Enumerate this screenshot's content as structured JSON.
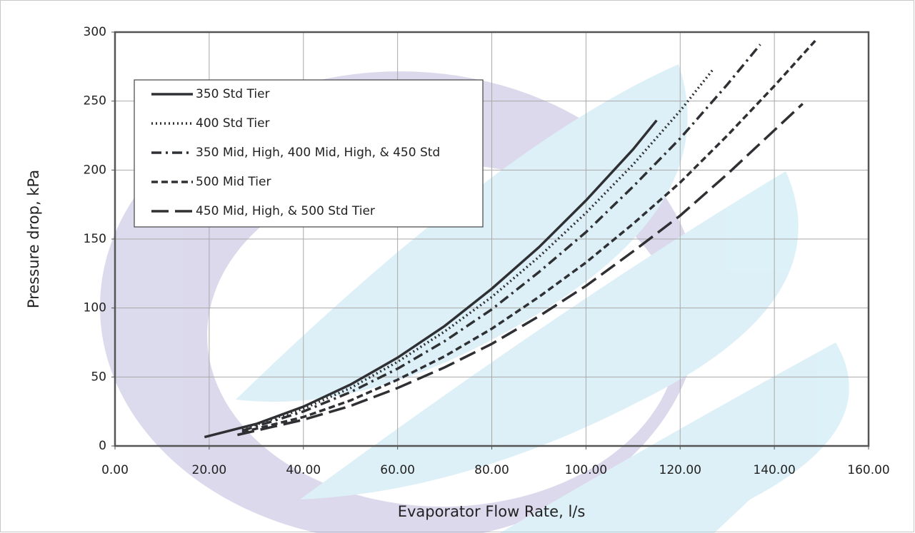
{
  "chart_data": {
    "type": "line",
    "x_label": "Evaporator Flow Rate, l/s",
    "y_label": "Pressure drop, kPa",
    "xlim": [
      0,
      160
    ],
    "xticks": [
      {
        "value": 0,
        "label": "0.00"
      },
      {
        "value": 20,
        "label": "20.00"
      },
      {
        "value": 40,
        "label": "40.00"
      },
      {
        "value": 60,
        "label": "60.00"
      },
      {
        "value": 80,
        "label": "80.00"
      },
      {
        "value": 100,
        "label": "100.00"
      },
      {
        "value": 120,
        "label": "120.00"
      },
      {
        "value": 140,
        "label": "140.00"
      },
      {
        "value": 160,
        "label": "160.00"
      }
    ],
    "ylim": [
      0,
      300
    ],
    "yticks": [
      0,
      50,
      100,
      150,
      200,
      250,
      300
    ],
    "grid": true,
    "legend": "upper left",
    "series": [
      {
        "name": "350 Std Tier",
        "color": "#2f3033",
        "dash": "solid",
        "x": [
          19,
          30,
          40,
          50,
          60,
          70,
          80,
          90,
          100,
          110,
          115
        ],
        "values": [
          6.4,
          16,
          28.5,
          44.5,
          64,
          87,
          114,
          144,
          178,
          215,
          236
        ]
      },
      {
        "name": "400 Std Tier",
        "color": "#2f3033",
        "dash": "dotted",
        "x": [
          27,
          40,
          50,
          60,
          70,
          80,
          90,
          100,
          110,
          120,
          127
        ],
        "values": [
          12,
          27,
          42,
          61,
          83,
          108,
          137,
          169,
          204,
          243,
          273
        ]
      },
      {
        "name": "350 Mid, High, 400 Mid, High, & 450 Std",
        "color": "#2f3033",
        "dash": "dashdot",
        "x": [
          27,
          40,
          50,
          60,
          70,
          80,
          90,
          100,
          110,
          120,
          130,
          137
        ],
        "values": [
          11,
          25,
          39,
          56,
          76,
          99,
          126,
          155,
          188,
          223,
          262,
          291
        ]
      },
      {
        "name": "500 Mid Tier",
        "color": "#2f3033",
        "dash": "dashed",
        "x": [
          27,
          40,
          50,
          60,
          70,
          80,
          90,
          100,
          110,
          120,
          130,
          140,
          149
        ],
        "values": [
          10,
          21,
          33,
          48,
          65,
          85,
          108,
          133,
          161,
          191,
          225,
          261,
          295
        ]
      },
      {
        "name": "450 Mid, High, & 500 Std Tier",
        "color": "#2f3033",
        "dash": "longdash",
        "x": [
          26,
          40,
          50,
          60,
          70,
          80,
          90,
          100,
          110,
          120,
          130,
          146
        ],
        "values": [
          8,
          19,
          29,
          42,
          57,
          74,
          94,
          116,
          141,
          167,
          197,
          248
        ]
      }
    ]
  }
}
